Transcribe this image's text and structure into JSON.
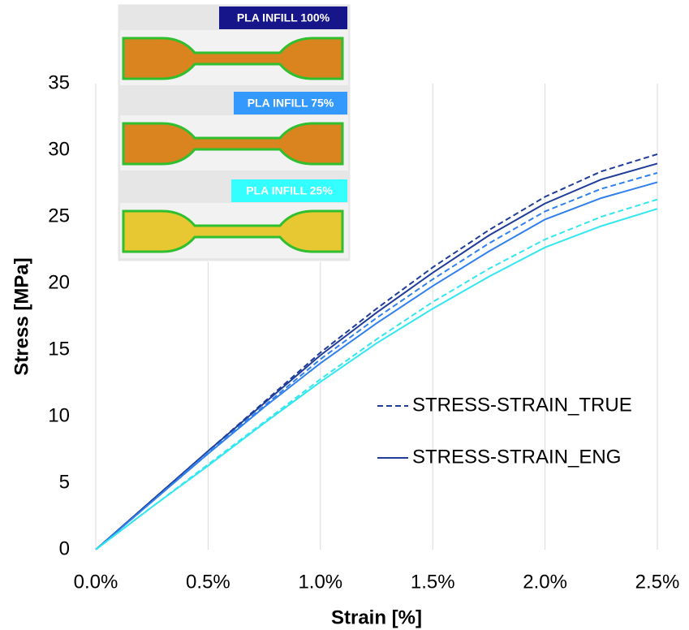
{
  "chart_data": {
    "type": "line",
    "x_label": "Strain [%]",
    "y_label": "Stress [MPa]",
    "x": [
      0,
      0.25,
      0.5,
      0.75,
      1.0,
      1.25,
      1.5,
      1.75,
      2.0,
      2.25,
      2.5
    ],
    "series": [
      {
        "color": "#1f3d99",
        "dashed": true,
        "values": [
          0,
          3.7,
          7.4,
          11.1,
          14.8,
          18.1,
          21.2,
          24.0,
          26.5,
          28.4,
          29.7
        ]
      },
      {
        "color": "#1f3d99",
        "dashed": false,
        "values": [
          0,
          3.7,
          7.4,
          11.0,
          14.6,
          17.8,
          20.8,
          23.6,
          26.0,
          27.8,
          29.0
        ]
      },
      {
        "color": "#2f80ed",
        "dashed": true,
        "values": [
          0,
          3.6,
          7.3,
          10.8,
          14.3,
          17.4,
          20.3,
          23.0,
          25.4,
          27.1,
          28.3
        ]
      },
      {
        "color": "#2f80ed",
        "dashed": false,
        "values": [
          0,
          3.6,
          7.2,
          10.7,
          14.0,
          17.0,
          19.8,
          22.4,
          24.8,
          26.4,
          27.6
        ]
      },
      {
        "color": "#33e6f0",
        "dashed": true,
        "values": [
          0,
          3.2,
          6.4,
          9.6,
          12.8,
          15.8,
          18.6,
          21.1,
          23.3,
          25.0,
          26.3
        ]
      },
      {
        "color": "#33e6f0",
        "dashed": false,
        "values": [
          0,
          3.2,
          6.3,
          9.5,
          12.6,
          15.5,
          18.1,
          20.5,
          22.7,
          24.3,
          25.6
        ]
      }
    ],
    "legend": [
      {
        "label": "STRESS-STRAIN_TRUE",
        "dashed": true,
        "color": "#1f3d99"
      },
      {
        "label": "STRESS-STRAIN_ENG",
        "dashed": false,
        "color": "#1f3d99"
      }
    ],
    "annotations": [
      {
        "text": "PLA INFILL 100%",
        "color": "#16168a"
      },
      {
        "text": "PLA INFILL 75%",
        "color": "#3399ff"
      },
      {
        "text": "PLA INFILL 25%",
        "color": "#33ffff"
      }
    ],
    "xlim": [
      0,
      2.5
    ],
    "ylim": [
      0,
      35
    ],
    "xticks": [
      {
        "value": 0,
        "label": "0.0%"
      },
      {
        "value": 0.5,
        "label": "0.5%"
      },
      {
        "value": 1.0,
        "label": "1.0%"
      },
      {
        "value": 1.5,
        "label": "1.5%"
      },
      {
        "value": 2.0,
        "label": "2.0%"
      },
      {
        "value": 2.5,
        "label": "2.5%"
      }
    ],
    "yticks": [
      0,
      5,
      10,
      15,
      20,
      25,
      30,
      35
    ],
    "grid": "x"
  }
}
